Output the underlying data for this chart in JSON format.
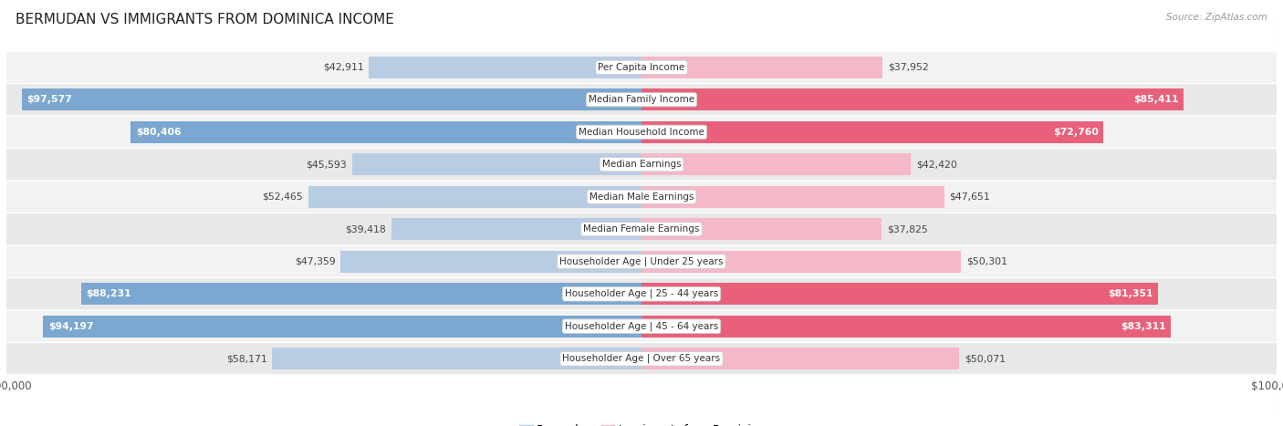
{
  "title": "BERMUDAN VS IMMIGRANTS FROM DOMINICA INCOME",
  "source": "Source: ZipAtlas.com",
  "categories": [
    "Per Capita Income",
    "Median Family Income",
    "Median Household Income",
    "Median Earnings",
    "Median Male Earnings",
    "Median Female Earnings",
    "Householder Age | Under 25 years",
    "Householder Age | 25 - 44 years",
    "Householder Age | 45 - 64 years",
    "Householder Age | Over 65 years"
  ],
  "bermudan": [
    42911,
    97577,
    80406,
    45593,
    52465,
    39418,
    47359,
    88231,
    94197,
    58171
  ],
  "dominica": [
    37952,
    85411,
    72760,
    42420,
    47651,
    37825,
    50301,
    81351,
    83311,
    50071
  ],
  "max_val": 100000,
  "bermudan_light_color": "#b8cce4",
  "bermudan_dark_color": "#7ba7d0",
  "dominica_light_color": "#f4b8c8",
  "dominica_dark_color": "#e8607a",
  "row_bg_even": "#f2f2f2",
  "row_bg_odd": "#e8e8e8",
  "title_color": "#222222",
  "text_dark_color": "#444444",
  "white_text_threshold": 68000,
  "bg_color": "#ffffff",
  "legend_bermudan": "Bermudan",
  "legend_dominica": "Immigrants from Dominica"
}
